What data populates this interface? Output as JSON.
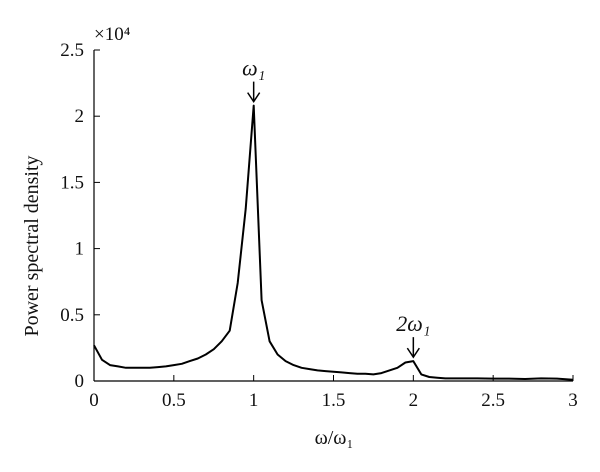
{
  "chart_data": {
    "type": "line",
    "title": "",
    "xlabel": "ω/ω₁",
    "ylabel": "Power spectral density",
    "y_multiplier": "×10⁴",
    "xlim": [
      0,
      3
    ],
    "ylim": [
      0,
      2.5
    ],
    "grid": false,
    "x_ticks": [
      "0",
      "0.5",
      "1",
      "1.5",
      "2",
      "2.5",
      "3"
    ],
    "y_ticks": [
      "0",
      "0.5",
      "1",
      "1.5",
      "2",
      "2.5"
    ],
    "series": [
      {
        "x": [
          0,
          0.05,
          0.1,
          0.15,
          0.2,
          0.25,
          0.3,
          0.35,
          0.4,
          0.45,
          0.5,
          0.55,
          0.6,
          0.65,
          0.7,
          0.75,
          0.8,
          0.85,
          0.9,
          0.95,
          1.0,
          1.05,
          1.1,
          1.15,
          1.2,
          1.25,
          1.3,
          1.35,
          1.4,
          1.45,
          1.5,
          1.55,
          1.6,
          1.65,
          1.7,
          1.75,
          1.8,
          1.85,
          1.9,
          1.95,
          2.0,
          2.05,
          2.1,
          2.15,
          2.2,
          2.3,
          2.4,
          2.5,
          2.6,
          2.7,
          2.8,
          2.9,
          3.0
        ],
        "y": [
          0.27,
          0.16,
          0.12,
          0.11,
          0.1,
          0.1,
          0.1,
          0.1,
          0.105,
          0.11,
          0.12,
          0.13,
          0.15,
          0.17,
          0.2,
          0.24,
          0.3,
          0.38,
          0.74,
          1.3,
          2.08,
          0.61,
          0.3,
          0.2,
          0.15,
          0.12,
          0.1,
          0.09,
          0.08,
          0.075,
          0.07,
          0.065,
          0.06,
          0.055,
          0.055,
          0.05,
          0.06,
          0.08,
          0.1,
          0.14,
          0.15,
          0.05,
          0.03,
          0.025,
          0.02,
          0.02,
          0.02,
          0.018,
          0.018,
          0.015,
          0.02,
          0.018,
          0.01
        ]
      }
    ],
    "annotations": [
      {
        "text": "ω₁",
        "x": 1.0,
        "y": 2.08
      },
      {
        "text": "2ω₁",
        "x": 2.0,
        "y": 0.15
      }
    ]
  }
}
